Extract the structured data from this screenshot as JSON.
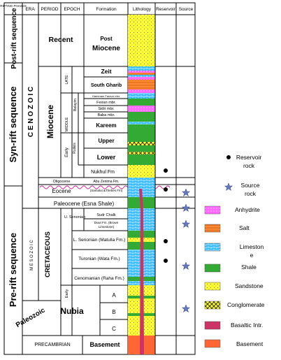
{
  "headers": {
    "phases": "RIFTING PHASES",
    "era": "ERA",
    "period": "PERIOD",
    "epoch": "EPOCH",
    "formation": "Formation",
    "lithology": "Lithology",
    "reservoir": "Reservoir",
    "source": "Source"
  },
  "phases": {
    "post_rift": "Post-rift sequence",
    "syn_rift": "Syn-rift sequence",
    "pre_rift": "Pre-rift sequence"
  },
  "eras": {
    "cenozoic": "C E N O Z O I C",
    "mesozoic": "M E S O Z O I C",
    "paleozoic": "Paleozoic"
  },
  "periods": {
    "recent": "Recent",
    "miocene": "Miocene",
    "oligocene": "Oligocene",
    "eocene": "Eocene",
    "paleocene": "Paleocene (Esna Shale)",
    "cretaceous": "CRETACEOUS",
    "nubia": "Nubia",
    "precambrian": "PRECAMBRIAN"
  },
  "epochs": {
    "late": "LATE",
    "middle": "MIDDLE",
    "belayim": "Belayim",
    "early": "Early",
    "rudeis": "Rudeis",
    "u_senonian": "U. Senonian",
    "l_senonian": "L. Senonian (Matulla Fm.)",
    "turonian": "Turonian (Wata Fm.)",
    "cenomanian": "Cenomanian (Raha Fm.)",
    "cret_early": "Early"
  },
  "formations": {
    "post_miocene_1": "Post",
    "post_miocene_2": "Miocene",
    "zeit": "Zeit",
    "south_gharib": "South Gharib",
    "hammam_faraun": "Hammam Faraun mbr.",
    "feiran": "Feiran mbr.",
    "sidri": "Sidri mbr.",
    "baba": "Baba mbr.",
    "kareem": "Kareem",
    "upper": "Upper",
    "lower": "Lower",
    "nukhul": "Nukhul Fm",
    "abu_zenima": "Abu Zenima Fm.",
    "samalut": "(Samalut &Thebes Fm)",
    "sudr": "Sudr Chalk",
    "duwi_1": "Duwi Fm. (Brown",
    "duwi_2": "Limestone)",
    "nubia_a": "A",
    "nubia_b": "B",
    "nubia_c": "C",
    "basement": "Basement"
  },
  "legend": {
    "reservoir": [
      "Reservoir",
      "rock"
    ],
    "source": [
      "Source",
      "rock"
    ],
    "anhydrite": "Anhydrite",
    "salt": "Salt",
    "limestone": [
      "Limeston",
      "e"
    ],
    "shale": "Shale",
    "sandstone": "Sandstone",
    "conglomerate": "Conglomerate",
    "basaltic": "Basaltic Intr.",
    "basement": "Basement"
  },
  "colors": {
    "sandstone": "#ffff33",
    "anhydrite": "#ff66ff",
    "salt": "#ff8833",
    "limestone": "#33bbff",
    "shale": "#33aa33",
    "conglomerate": "#999933",
    "basaltic": "#cc3366",
    "basement": "#ff6633",
    "source_star": "#6677bb",
    "eocene_wave": "#cc3399"
  }
}
